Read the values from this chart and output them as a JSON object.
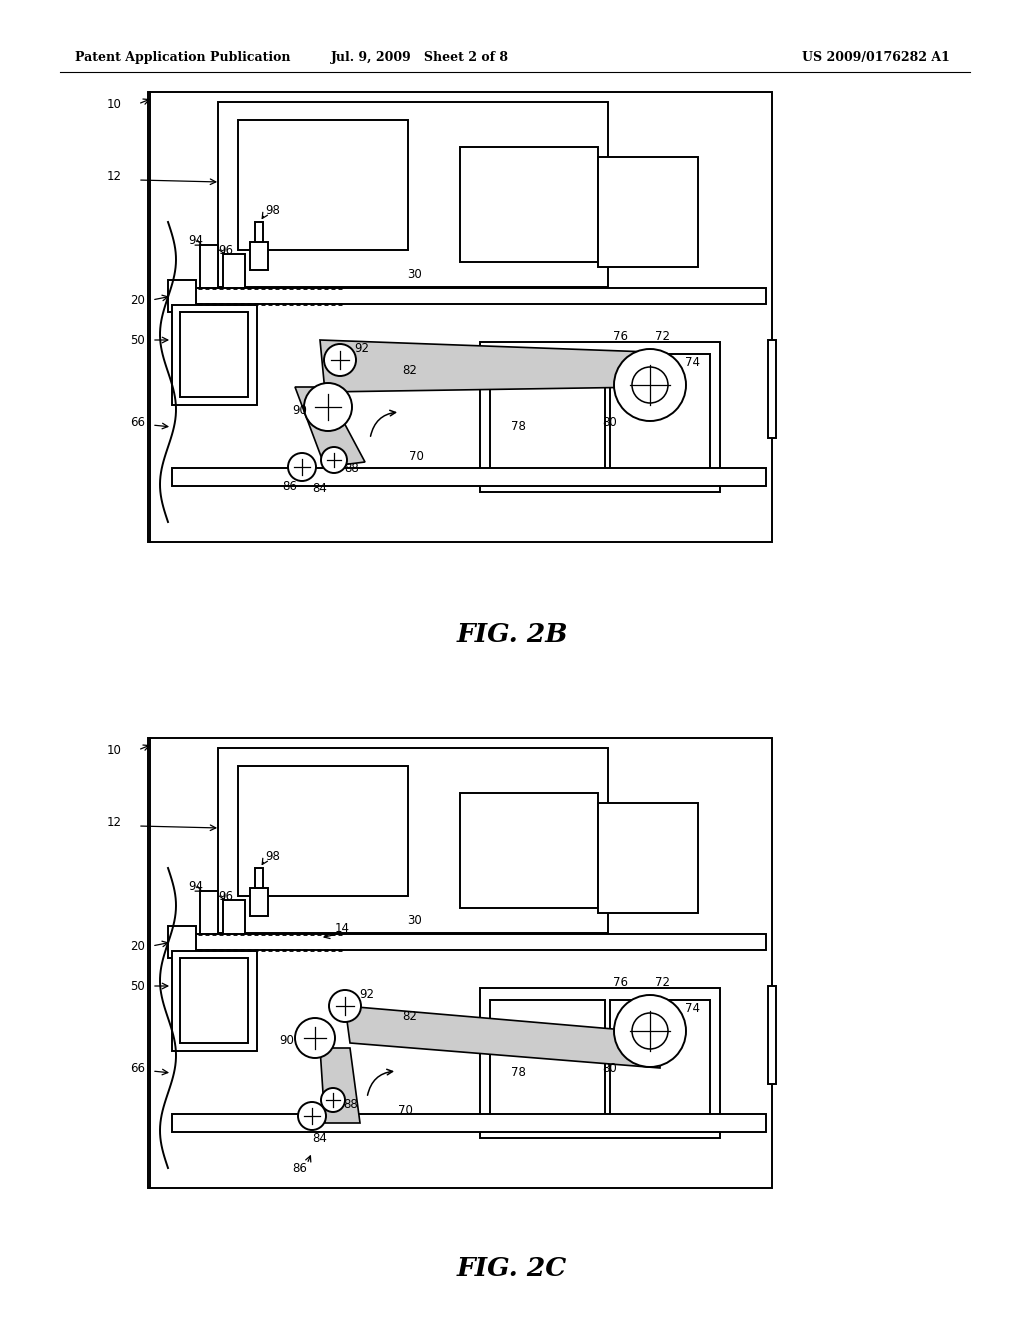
{
  "header_left": "Patent Application Publication",
  "header_center": "Jul. 9, 2009   Sheet 2 of 8",
  "header_right": "US 2009/0176282 A1",
  "fig2b_label": "FIG. 2B",
  "fig2c_label": "FIG. 2C",
  "bg_color": "#ffffff",
  "line_color": "#000000"
}
